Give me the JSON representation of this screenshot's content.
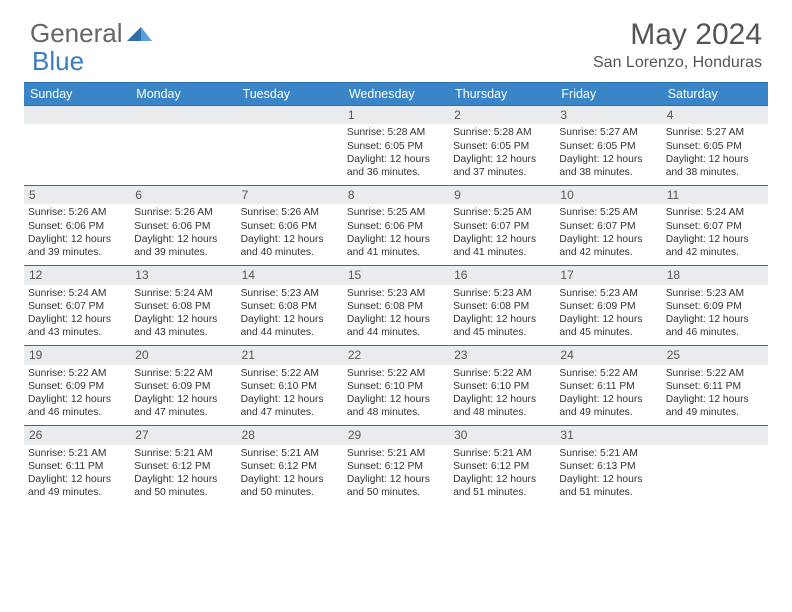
{
  "logo": {
    "part1": "General",
    "part2": "Blue"
  },
  "title": "May 2024",
  "location": "San Lorenzo, Honduras",
  "colors": {
    "header_bg": "#3a85c8",
    "header_text": "#ffffff",
    "border": "#2e6fa8",
    "daynum_bg": "#e9ecef",
    "text": "#333333",
    "logo_accent": "#3a7cc2"
  },
  "day_headers": [
    "Sunday",
    "Monday",
    "Tuesday",
    "Wednesday",
    "Thursday",
    "Friday",
    "Saturday"
  ],
  "weeks": [
    [
      null,
      null,
      null,
      {
        "n": "1",
        "sr": "5:28 AM",
        "ss": "6:05 PM",
        "d1": "12 hours",
        "d2": "36 minutes."
      },
      {
        "n": "2",
        "sr": "5:28 AM",
        "ss": "6:05 PM",
        "d1": "12 hours",
        "d2": "37 minutes."
      },
      {
        "n": "3",
        "sr": "5:27 AM",
        "ss": "6:05 PM",
        "d1": "12 hours",
        "d2": "38 minutes."
      },
      {
        "n": "4",
        "sr": "5:27 AM",
        "ss": "6:05 PM",
        "d1": "12 hours",
        "d2": "38 minutes."
      }
    ],
    [
      {
        "n": "5",
        "sr": "5:26 AM",
        "ss": "6:06 PM",
        "d1": "12 hours",
        "d2": "39 minutes."
      },
      {
        "n": "6",
        "sr": "5:26 AM",
        "ss": "6:06 PM",
        "d1": "12 hours",
        "d2": "39 minutes."
      },
      {
        "n": "7",
        "sr": "5:26 AM",
        "ss": "6:06 PM",
        "d1": "12 hours",
        "d2": "40 minutes."
      },
      {
        "n": "8",
        "sr": "5:25 AM",
        "ss": "6:06 PM",
        "d1": "12 hours",
        "d2": "41 minutes."
      },
      {
        "n": "9",
        "sr": "5:25 AM",
        "ss": "6:07 PM",
        "d1": "12 hours",
        "d2": "41 minutes."
      },
      {
        "n": "10",
        "sr": "5:25 AM",
        "ss": "6:07 PM",
        "d1": "12 hours",
        "d2": "42 minutes."
      },
      {
        "n": "11",
        "sr": "5:24 AM",
        "ss": "6:07 PM",
        "d1": "12 hours",
        "d2": "42 minutes."
      }
    ],
    [
      {
        "n": "12",
        "sr": "5:24 AM",
        "ss": "6:07 PM",
        "d1": "12 hours",
        "d2": "43 minutes."
      },
      {
        "n": "13",
        "sr": "5:24 AM",
        "ss": "6:08 PM",
        "d1": "12 hours",
        "d2": "43 minutes."
      },
      {
        "n": "14",
        "sr": "5:23 AM",
        "ss": "6:08 PM",
        "d1": "12 hours",
        "d2": "44 minutes."
      },
      {
        "n": "15",
        "sr": "5:23 AM",
        "ss": "6:08 PM",
        "d1": "12 hours",
        "d2": "44 minutes."
      },
      {
        "n": "16",
        "sr": "5:23 AM",
        "ss": "6:08 PM",
        "d1": "12 hours",
        "d2": "45 minutes."
      },
      {
        "n": "17",
        "sr": "5:23 AM",
        "ss": "6:09 PM",
        "d1": "12 hours",
        "d2": "45 minutes."
      },
      {
        "n": "18",
        "sr": "5:23 AM",
        "ss": "6:09 PM",
        "d1": "12 hours",
        "d2": "46 minutes."
      }
    ],
    [
      {
        "n": "19",
        "sr": "5:22 AM",
        "ss": "6:09 PM",
        "d1": "12 hours",
        "d2": "46 minutes."
      },
      {
        "n": "20",
        "sr": "5:22 AM",
        "ss": "6:09 PM",
        "d1": "12 hours",
        "d2": "47 minutes."
      },
      {
        "n": "21",
        "sr": "5:22 AM",
        "ss": "6:10 PM",
        "d1": "12 hours",
        "d2": "47 minutes."
      },
      {
        "n": "22",
        "sr": "5:22 AM",
        "ss": "6:10 PM",
        "d1": "12 hours",
        "d2": "48 minutes."
      },
      {
        "n": "23",
        "sr": "5:22 AM",
        "ss": "6:10 PM",
        "d1": "12 hours",
        "d2": "48 minutes."
      },
      {
        "n": "24",
        "sr": "5:22 AM",
        "ss": "6:11 PM",
        "d1": "12 hours",
        "d2": "49 minutes."
      },
      {
        "n": "25",
        "sr": "5:22 AM",
        "ss": "6:11 PM",
        "d1": "12 hours",
        "d2": "49 minutes."
      }
    ],
    [
      {
        "n": "26",
        "sr": "5:21 AM",
        "ss": "6:11 PM",
        "d1": "12 hours",
        "d2": "49 minutes."
      },
      {
        "n": "27",
        "sr": "5:21 AM",
        "ss": "6:12 PM",
        "d1": "12 hours",
        "d2": "50 minutes."
      },
      {
        "n": "28",
        "sr": "5:21 AM",
        "ss": "6:12 PM",
        "d1": "12 hours",
        "d2": "50 minutes."
      },
      {
        "n": "29",
        "sr": "5:21 AM",
        "ss": "6:12 PM",
        "d1": "12 hours",
        "d2": "50 minutes."
      },
      {
        "n": "30",
        "sr": "5:21 AM",
        "ss": "6:12 PM",
        "d1": "12 hours",
        "d2": "51 minutes."
      },
      {
        "n": "31",
        "sr": "5:21 AM",
        "ss": "6:13 PM",
        "d1": "12 hours",
        "d2": "51 minutes."
      },
      null
    ]
  ],
  "labels": {
    "sunrise": "Sunrise:",
    "sunset": "Sunset:",
    "daylight": "Daylight:",
    "and": "and"
  }
}
